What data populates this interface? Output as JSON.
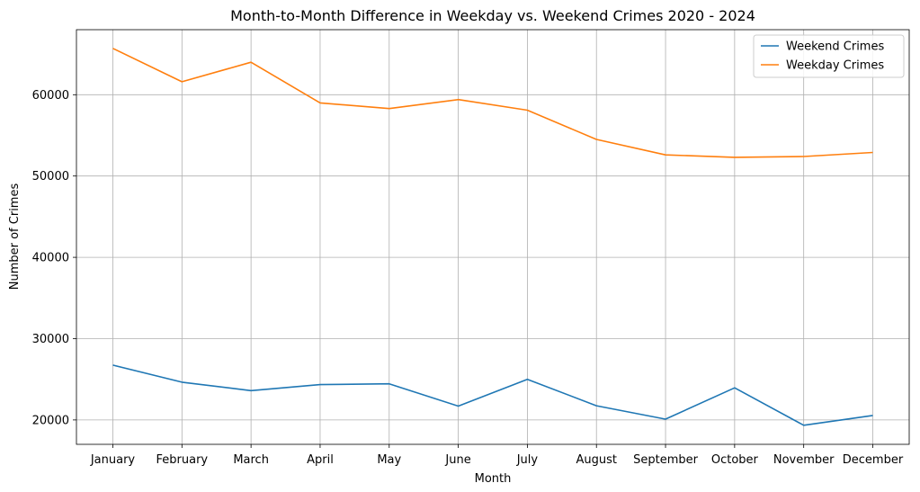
{
  "chart_data": {
    "type": "line",
    "title": "Month-to-Month Difference in Weekday vs. Weekend Crimes 2020 - 2024",
    "xlabel": "Month",
    "ylabel": "Number of Crimes",
    "categories": [
      "January",
      "February",
      "March",
      "April",
      "May",
      "June",
      "July",
      "August",
      "September",
      "October",
      "November",
      "December"
    ],
    "ylim": [
      17000,
      68000
    ],
    "yticks": [
      20000,
      30000,
      40000,
      50000,
      60000
    ],
    "grid": true,
    "legend_position": "top-right",
    "series": [
      {
        "name": "Weekend Crimes",
        "color": "#1f77b4",
        "values": [
          26750,
          24650,
          23600,
          24350,
          24450,
          21700,
          25000,
          21750,
          20100,
          23950,
          19350,
          20550
        ]
      },
      {
        "name": "Weekday Crimes",
        "color": "#ff7f0e",
        "values": [
          65700,
          61600,
          64000,
          59000,
          58300,
          59400,
          58100,
          54500,
          52600,
          52300,
          52400,
          52900
        ]
      }
    ]
  }
}
